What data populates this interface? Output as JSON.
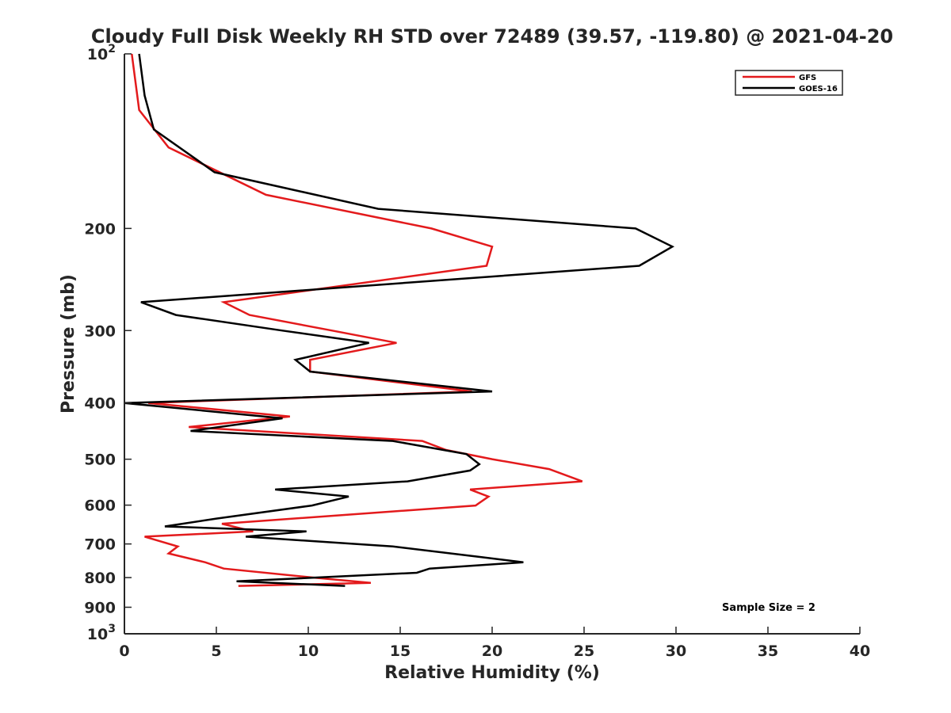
{
  "chart_data": {
    "type": "line",
    "title": "Cloudy Full Disk Weekly RH STD over 72489 (39.57, -119.80) @ 2021-04-20",
    "xlabel": "Relative Humidity (%)",
    "ylabel": "Pressure (mb)",
    "xlim": [
      0,
      40
    ],
    "ylim": [
      100,
      1000
    ],
    "y_scale": "log",
    "y_reversed": true,
    "grid": false,
    "legend_position": "top-right",
    "x_ticks": [
      "0",
      "5",
      "10",
      "15",
      "20",
      "25",
      "30",
      "35",
      "40"
    ],
    "y_ticks": [
      {
        "value": 100,
        "base": "10",
        "exp": "2"
      },
      {
        "value": 200,
        "label": "200"
      },
      {
        "value": 300,
        "label": "300"
      },
      {
        "value": 400,
        "label": "400"
      },
      {
        "value": 500,
        "label": "500"
      },
      {
        "value": 600,
        "label": "600"
      },
      {
        "value": 700,
        "label": "700"
      },
      {
        "value": 800,
        "label": "800"
      },
      {
        "value": 900,
        "label": "900"
      },
      {
        "value": 1000,
        "base": "10",
        "exp": "3"
      }
    ],
    "annotation": "Sample Size = 2",
    "series": [
      {
        "name": "GFS",
        "color": "#e31a1c",
        "points": [
          [
            0.4,
            100
          ],
          [
            0.8,
            125
          ],
          [
            2.4,
            145
          ],
          [
            7.7,
            175
          ],
          [
            16.7,
            200
          ],
          [
            20.0,
            215
          ],
          [
            19.7,
            232
          ],
          [
            5.4,
            268
          ],
          [
            6.8,
            282
          ],
          [
            11.3,
            300
          ],
          [
            14.8,
            315
          ],
          [
            10.1,
            337
          ],
          [
            10.1,
            353
          ],
          [
            18.9,
            382
          ],
          [
            1.3,
            400
          ],
          [
            9.0,
            422
          ],
          [
            3.5,
            440
          ],
          [
            16.2,
            465
          ],
          [
            17.5,
            482
          ],
          [
            20.0,
            500
          ],
          [
            23.1,
            520
          ],
          [
            24.9,
            546
          ],
          [
            18.8,
            564
          ],
          [
            19.8,
            580
          ],
          [
            19.1,
            601
          ],
          [
            5.3,
            646
          ],
          [
            7.0,
            666
          ],
          [
            1.1,
            680
          ],
          [
            2.9,
            707
          ],
          [
            2.4,
            727
          ],
          [
            4.4,
            753
          ],
          [
            5.4,
            772
          ],
          [
            10.3,
            800
          ],
          [
            13.4,
            817
          ],
          [
            6.2,
            827
          ]
        ]
      },
      {
        "name": "GOES-16",
        "color": "#000000",
        "points": [
          [
            0.8,
            100
          ],
          [
            1.1,
            118
          ],
          [
            1.6,
            135
          ],
          [
            4.9,
            160
          ],
          [
            13.8,
            185
          ],
          [
            27.8,
            200
          ],
          [
            29.8,
            215
          ],
          [
            28.0,
            232
          ],
          [
            0.9,
            268
          ],
          [
            2.8,
            282
          ],
          [
            8.6,
            300
          ],
          [
            13.3,
            315
          ],
          [
            9.3,
            337
          ],
          [
            10.1,
            353
          ],
          [
            20.0,
            382
          ],
          [
            0.0,
            400
          ],
          [
            8.6,
            425
          ],
          [
            3.6,
            447
          ],
          [
            14.6,
            465
          ],
          [
            18.6,
            490
          ],
          [
            19.3,
            510
          ],
          [
            18.8,
            523
          ],
          [
            15.4,
            546
          ],
          [
            8.2,
            564
          ],
          [
            12.2,
            580
          ],
          [
            10.2,
            601
          ],
          [
            5.0,
            633
          ],
          [
            2.2,
            653
          ],
          [
            9.9,
            666
          ],
          [
            6.6,
            680
          ],
          [
            14.6,
            707
          ],
          [
            19.2,
            736
          ],
          [
            21.7,
            753
          ],
          [
            16.6,
            772
          ],
          [
            15.9,
            785
          ],
          [
            6.1,
            812
          ],
          [
            12.0,
            827
          ]
        ]
      }
    ]
  }
}
